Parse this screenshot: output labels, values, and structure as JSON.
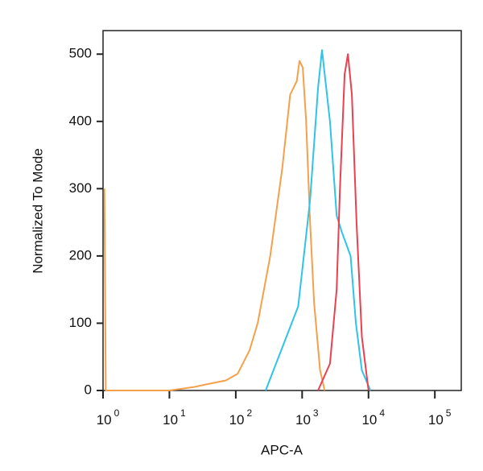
{
  "chart_data": {
    "type": "line",
    "xlabel": "APC-A",
    "ylabel": "Normalized To Mode",
    "xscale": "log",
    "xlim": [
      1,
      250000
    ],
    "ylim": [
      0,
      535
    ],
    "xticks": [
      {
        "value": 1,
        "label": "10",
        "exponent": "0"
      },
      {
        "value": 10,
        "label": "10",
        "exponent": "1"
      },
      {
        "value": 100,
        "label": "10",
        "exponent": "2"
      },
      {
        "value": 1000,
        "label": "10",
        "exponent": "3"
      },
      {
        "value": 10000,
        "label": "10",
        "exponent": "4"
      },
      {
        "value": 100000,
        "label": "10",
        "exponent": "5"
      }
    ],
    "yticks": [
      0,
      100,
      200,
      300,
      400,
      500
    ],
    "series": [
      {
        "color": "#f5a04a",
        "x": [
          1.05,
          1.1,
          10,
          23,
          40,
          71,
          107,
          162,
          214,
          331,
          501,
          661,
          832,
          912,
          1023,
          1148,
          1318,
          1514,
          1862,
          2188
        ],
        "values": [
          300,
          0,
          0,
          5,
          10,
          15,
          25,
          60,
          100,
          200,
          330,
          440,
          460,
          490,
          480,
          400,
          250,
          130,
          30,
          0
        ]
      },
      {
        "color": "#2ec4e8",
        "x": [
          282,
          871,
          1318,
          1738,
          1995,
          2630,
          3311,
          3981,
          5370,
          6457,
          7943,
          10715
        ],
        "values": [
          0,
          125,
          283,
          450,
          506,
          400,
          260,
          235,
          200,
          100,
          30,
          0
        ]
      },
      {
        "color": "#e8414f",
        "x": [
          1738,
          2630,
          3311,
          3715,
          4365,
          4898,
          5623,
          6607,
          7943,
          10000
        ],
        "values": [
          0,
          40,
          150,
          300,
          470,
          500,
          440,
          250,
          80,
          0
        ]
      }
    ]
  }
}
